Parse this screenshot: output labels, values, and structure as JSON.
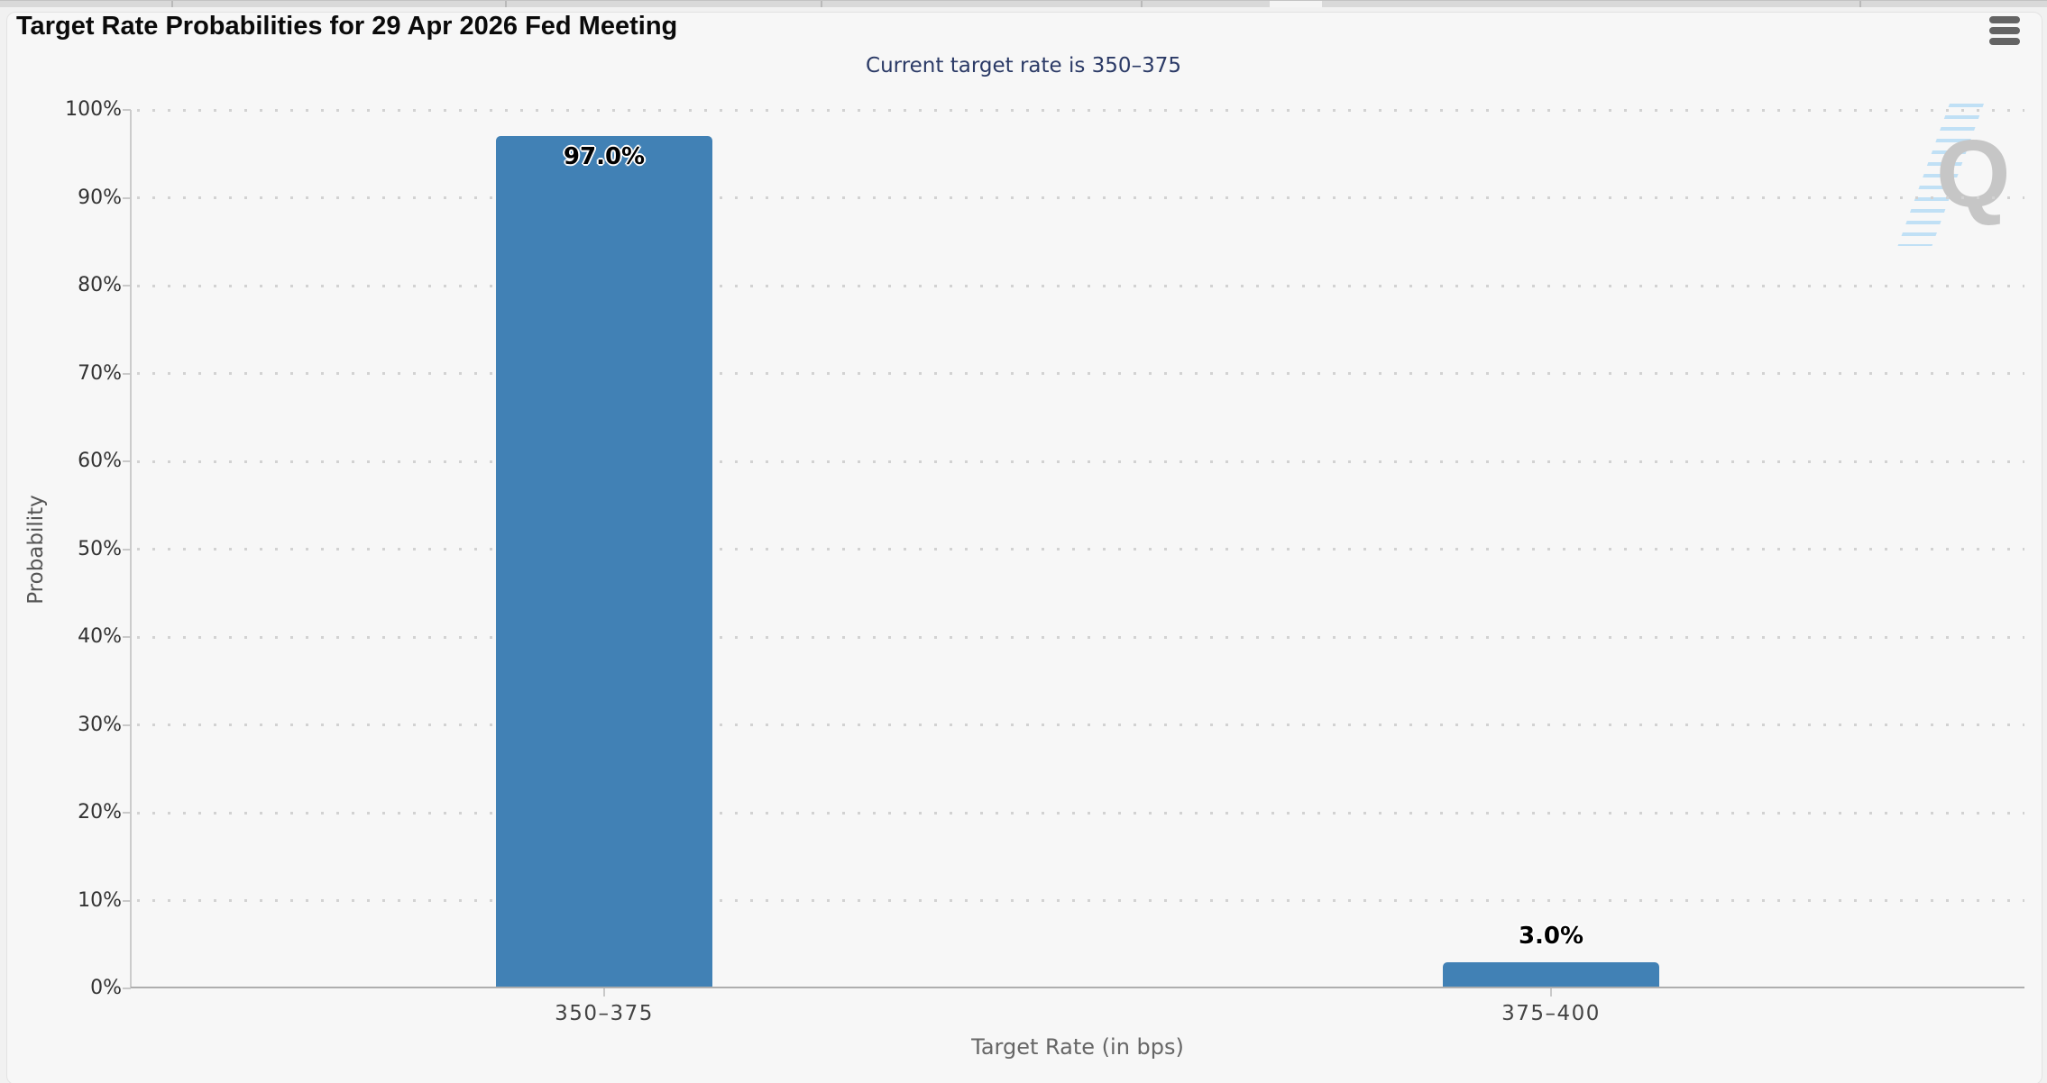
{
  "chart_data": {
    "type": "bar",
    "title": "Target Rate Probabilities for 29 Apr 2026 Fed Meeting",
    "subtitle": "Current target rate is 350–375",
    "categories": [
      "350–375",
      "375–400"
    ],
    "values": [
      97.0,
      3.0
    ],
    "data_labels": [
      "97.0%",
      "3.0%"
    ],
    "xlabel": "Target Rate (in bps)",
    "ylabel": "Probability",
    "ylim": [
      0,
      100
    ],
    "ytick_step": 10,
    "ytick_labels": [
      "0%",
      "10%",
      "20%",
      "30%",
      "40%",
      "50%",
      "60%",
      "70%",
      "80%",
      "90%",
      "100%"
    ],
    "grid": "dotted",
    "legend": "none",
    "bar_color": "#4181b5",
    "subtitle_color": "#2b3a66",
    "watermark_letter": "Q"
  }
}
